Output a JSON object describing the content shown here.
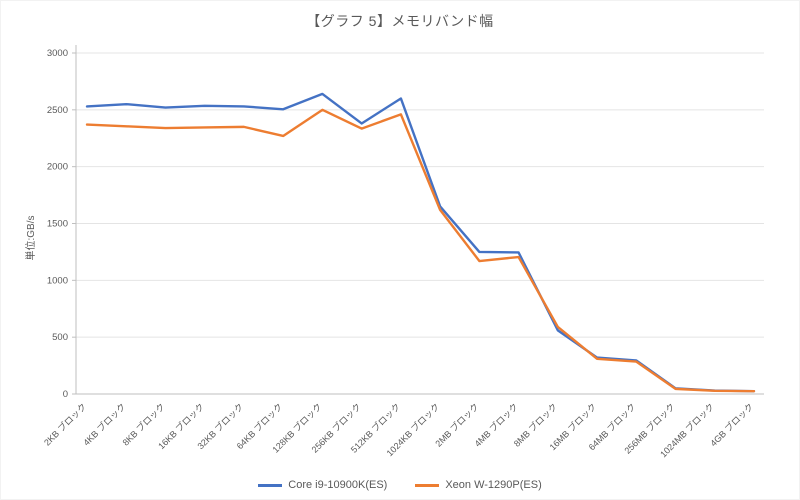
{
  "chart_data": {
    "type": "line",
    "title": "【グラフ 5】メモリバンド幅",
    "ylabel": "単位:GB/s",
    "ylim": [
      0,
      3000
    ],
    "ytick_step": 500,
    "grid": true,
    "legend_position": "bottom",
    "categories": [
      "2KB ブロック",
      "4KB ブロック",
      "8KB ブロック",
      "16KB ブロック",
      "32KB ブロック",
      "64KB ブロック",
      "128KB ブロック",
      "256KB ブロック",
      "512KB ブロック",
      "1024KB ブロック",
      "2MB ブロック",
      "4MB ブロック",
      "8MB ブロック",
      "16MB ブロック",
      "64MB ブロック",
      "256MB ブロック",
      "1024MB ブロック",
      "4GB ブロック"
    ],
    "series": [
      {
        "name": "Core i9-10900K(ES)",
        "color": "#4472C4",
        "values": [
          2530,
          2550,
          2520,
          2535,
          2530,
          2505,
          2640,
          2380,
          2600,
          1650,
          1250,
          1245,
          560,
          320,
          295,
          50,
          30,
          25
        ]
      },
      {
        "name": "Xeon W-1290P(ES)",
        "color": "#ED7D31",
        "values": [
          2370,
          2355,
          2340,
          2345,
          2350,
          2270,
          2500,
          2335,
          2460,
          1620,
          1170,
          1205,
          590,
          310,
          285,
          45,
          28,
          25
        ]
      }
    ]
  }
}
